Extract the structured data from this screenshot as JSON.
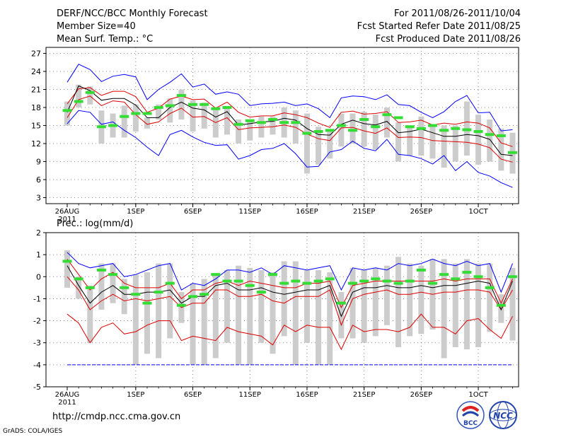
{
  "header": {
    "title": "DERF/NCC/BCC Monthly Forecast",
    "member_size": "Member Size=40",
    "variable": "Mean Surf. Temp.: °C",
    "forecast_period": "For 2011/08/26-2011/10/04",
    "started_refer": "Fcst Started Refer Date 2011/08/25",
    "produced": "Fcst Produced Date 2011/08/26"
  },
  "footer": {
    "url": "http://cmdp.ncc.cma.gov.cn",
    "grads": "GrADS: COLA/IGES"
  },
  "logos": {
    "bcc": "BCC",
    "ncc": "NCC"
  },
  "colors": {
    "max_min": "#0000ff",
    "spread": "#dd0000",
    "mean": "#000000",
    "box": "#cccccc",
    "obs": "#33dd33"
  },
  "chart_data": [
    {
      "type": "line",
      "title": "Mean Surf. Temp.: °C",
      "xlabel": "",
      "ylabel": "",
      "ylim": [
        2,
        28
      ],
      "yticks": [
        3,
        6,
        9,
        12,
        15,
        18,
        21,
        24,
        27
      ],
      "ytick_labels": [
        "3",
        "6",
        "9",
        "12",
        "15",
        "18",
        "21",
        "24",
        "27"
      ],
      "xtick_labels": [
        "26AUG",
        "1SEP",
        "6SEP",
        "11SEP",
        "16SEP",
        "21SEP",
        "26SEP",
        "1OCT"
      ],
      "xtick_days": [
        0,
        6,
        11,
        16,
        21,
        26,
        31,
        36
      ],
      "xtick_sub": "2011",
      "grid": true,
      "x": [
        0,
        1,
        2,
        3,
        4,
        5,
        6,
        7,
        8,
        9,
        10,
        11,
        12,
        13,
        14,
        15,
        16,
        17,
        18,
        19,
        20,
        21,
        22,
        23,
        24,
        25,
        26,
        27,
        28,
        29,
        30,
        31,
        32,
        33,
        34,
        35,
        36,
        37,
        38,
        39
      ],
      "series": [
        {
          "name": "max",
          "values": [
            22.2,
            25.2,
            24.3,
            22.3,
            23.2,
            23.5,
            23.1,
            19.3,
            21.0,
            22.2,
            23.6,
            21.4,
            21.9,
            20.2,
            20.6,
            20.2,
            18.3,
            18.6,
            18.7,
            18.9,
            18.3,
            18.6,
            17.8,
            16.3,
            19.6,
            19.9,
            19.8,
            19.3,
            20.1,
            18.5,
            18.3,
            17.2,
            16.3,
            17.3,
            19.0,
            20.0,
            17.1,
            17.2,
            14.1,
            14.3
          ]
        },
        {
          "name": "upper",
          "values": [
            18.6,
            21.1,
            21.3,
            20.0,
            20.7,
            20.7,
            19.8,
            17.2,
            17.9,
            19.4,
            19.9,
            19.3,
            19.4,
            17.9,
            18.9,
            17.2,
            16.4,
            16.6,
            16.6,
            17.1,
            16.8,
            16.3,
            15.4,
            14.7,
            17.2,
            17.4,
            16.9,
            17.0,
            17.3,
            15.5,
            15.6,
            15.9,
            15.1,
            15.4,
            15.2,
            15.6,
            15.4,
            14.6,
            12.1,
            11.5
          ]
        },
        {
          "name": "mean",
          "values": [
            17.2,
            21.6,
            20.8,
            19.2,
            19.5,
            19.5,
            18.4,
            16.3,
            16.3,
            18.0,
            18.9,
            17.9,
            17.6,
            16.4,
            17.3,
            15.1,
            15.3,
            15.6,
            15.7,
            16.2,
            15.9,
            14.5,
            13.5,
            13.4,
            15.2,
            15.9,
            15.3,
            15.1,
            15.7,
            13.8,
            14.0,
            14.4,
            13.8,
            13.2,
            13.2,
            13.5,
            13.3,
            12.7,
            10.2,
            10.0
          ]
        },
        {
          "name": "lower",
          "values": [
            16.3,
            19.3,
            19.9,
            18.3,
            19.1,
            18.9,
            16.8,
            15.2,
            15.6,
            17.0,
            17.9,
            16.4,
            16.5,
            15.5,
            16.3,
            14.3,
            14.6,
            14.7,
            14.8,
            15.1,
            14.7,
            13.6,
            12.8,
            12.5,
            14.6,
            14.7,
            14.1,
            13.7,
            14.6,
            13.0,
            13.1,
            13.0,
            12.5,
            12.4,
            12.3,
            12.2,
            11.9,
            11.3,
            9.4,
            8.9
          ]
        },
        {
          "name": "min",
          "values": [
            15.3,
            17.5,
            17.2,
            15.2,
            15.6,
            14.2,
            13.0,
            11.4,
            10.0,
            13.5,
            14.2,
            13.1,
            12.2,
            11.7,
            11.8,
            9.4,
            10.0,
            11.0,
            11.2,
            12.0,
            10.3,
            8.1,
            8.2,
            10.6,
            11.0,
            12.4,
            11.2,
            10.8,
            12.7,
            10.2,
            10.0,
            9.5,
            8.6,
            10.0,
            7.5,
            9.0,
            7.2,
            6.6,
            5.5,
            4.7
          ]
        },
        {
          "name": "box_top",
          "values": [
            19.0,
            21.8,
            21.5,
            17.5,
            17.0,
            18.3,
            18.5,
            16.3,
            18.5,
            19.5,
            21.0,
            19.2,
            18.8,
            18.0,
            17.8,
            16.0,
            15.6,
            16.5,
            16.5,
            18.0,
            17.5,
            17.0,
            14.8,
            14.0,
            17.0,
            17.0,
            17.3,
            16.8,
            18.0,
            15.5,
            15.0,
            16.5,
            14.8,
            15.0,
            15.0,
            19.0,
            16.8,
            16.0,
            14.5,
            13.8
          ]
        },
        {
          "name": "box_bottom",
          "values": [
            15.0,
            18.0,
            18.5,
            12.0,
            13.0,
            13.0,
            14.0,
            14.5,
            16.0,
            15.5,
            16.0,
            14.0,
            14.5,
            13.0,
            13.5,
            12.0,
            12.5,
            13.0,
            13.5,
            13.0,
            12.0,
            7.0,
            8.5,
            9.5,
            11.5,
            12.0,
            11.5,
            11.0,
            13.0,
            9.0,
            10.0,
            10.0,
            9.5,
            8.0,
            9.0,
            10.0,
            8.5,
            9.0,
            7.5,
            7.0
          ]
        },
        {
          "name": "obs",
          "values": [
            17.5,
            19.0,
            20.5,
            14.8,
            15.0,
            16.5,
            17.0,
            17.0,
            18.0,
            18.3,
            20.0,
            18.5,
            18.5,
            17.8,
            18.0,
            15.2,
            15.8,
            15.5,
            16.0,
            15.5,
            15.5,
            13.7,
            14.0,
            14.2,
            15.0,
            14.2,
            16.0,
            14.8,
            16.8,
            16.3,
            14.8,
            14.5,
            15.0,
            14.2,
            14.5,
            14.3,
            14.0,
            13.5,
            13.3,
            10.5
          ]
        }
      ]
    },
    {
      "type": "line",
      "title": "Prec.: log(mm/d)",
      "xlabel": "",
      "ylabel": "",
      "ylim": [
        -5,
        2
      ],
      "yticks": [
        -5,
        -4,
        -3,
        -2,
        -1,
        0,
        1,
        2
      ],
      "ytick_labels": [
        "-5",
        "-4",
        "-3",
        "-2",
        "-1",
        "0",
        "1",
        "2"
      ],
      "xtick_labels": [
        "26AUG",
        "1SEP",
        "6SEP",
        "11SEP",
        "16SEP",
        "21SEP",
        "26SEP",
        "1OCT"
      ],
      "xtick_days": [
        0,
        6,
        11,
        16,
        21,
        26,
        31,
        36
      ],
      "xtick_sub": "2011",
      "grid": true,
      "x": [
        0,
        1,
        2,
        3,
        4,
        5,
        6,
        7,
        8,
        9,
        10,
        11,
        12,
        13,
        14,
        15,
        16,
        17,
        18,
        19,
        20,
        21,
        22,
        23,
        24,
        25,
        26,
        27,
        28,
        29,
        30,
        31,
        32,
        33,
        34,
        35,
        36,
        37,
        38,
        39
      ],
      "series": [
        {
          "name": "max",
          "values": [
            1.1,
            0.6,
            0.4,
            0.5,
            0.6,
            0.0,
            0.1,
            0.3,
            0.5,
            0.6,
            -0.6,
            -0.3,
            -0.4,
            -0.1,
            0.3,
            0.3,
            0.2,
            0.4,
            0.1,
            0.5,
            0.4,
            0.3,
            0.4,
            0.5,
            -0.6,
            0.4,
            0.3,
            0.4,
            0.3,
            0.6,
            0.5,
            0.6,
            0.8,
            0.6,
            0.5,
            0.7,
            0.5,
            0.6,
            -0.7,
            0.6
          ]
        },
        {
          "name": "upper",
          "values": [
            0.8,
            0.1,
            -0.6,
            -0.1,
            0.2,
            -0.3,
            -0.5,
            -0.5,
            -0.5,
            -0.3,
            -1.0,
            -0.6,
            -0.6,
            -0.3,
            -0.2,
            -0.4,
            -0.2,
            -0.3,
            -0.4,
            -0.5,
            -0.5,
            -0.3,
            -0.3,
            -0.2,
            -1.4,
            -0.4,
            -0.3,
            -0.2,
            -0.2,
            -0.2,
            -0.2,
            -0.2,
            -0.2,
            -0.1,
            -0.2,
            -0.1,
            -0.1,
            -0.1,
            -1.2,
            -0.1
          ]
        },
        {
          "name": "mean",
          "values": [
            0.5,
            -0.4,
            -1.2,
            -0.7,
            -0.4,
            -0.8,
            -0.8,
            -0.7,
            -0.7,
            -0.6,
            -1.2,
            -0.9,
            -0.9,
            -0.4,
            -0.3,
            -0.6,
            -0.6,
            -0.5,
            -0.7,
            -0.8,
            -0.7,
            -0.6,
            -0.6,
            -0.4,
            -1.8,
            -0.7,
            -0.5,
            -0.5,
            -0.4,
            -0.5,
            -0.5,
            -0.4,
            -0.5,
            -0.4,
            -0.4,
            -0.3,
            -0.2,
            -0.3,
            -1.5,
            -0.2
          ]
        },
        {
          "name": "lower",
          "values": [
            0.0,
            -0.6,
            -1.5,
            -1.1,
            -0.8,
            -1.1,
            -1.0,
            -1.1,
            -1.0,
            -0.9,
            -1.4,
            -1.2,
            -1.2,
            -0.6,
            -0.6,
            -0.9,
            -0.9,
            -0.8,
            -1.1,
            -1.2,
            -0.9,
            -0.9,
            -0.9,
            -0.6,
            -2.2,
            -1.0,
            -0.8,
            -0.7,
            -0.6,
            -0.8,
            -0.8,
            -0.7,
            -0.8,
            -0.7,
            -0.7,
            -0.6,
            -0.6,
            -0.7,
            -1.5,
            -0.6
          ]
        },
        {
          "name": "spread_low",
          "values": [
            -1.7,
            -2.1,
            -3.0,
            -2.3,
            -2.1,
            -2.6,
            -2.5,
            -2.2,
            -2.0,
            -2.0,
            -2.9,
            -2.7,
            -2.8,
            -2.9,
            -2.3,
            -2.5,
            -2.6,
            -2.7,
            -3.1,
            -2.2,
            -2.5,
            -2.2,
            -2.3,
            -2.3,
            -3.3,
            -2.2,
            -2.5,
            -2.4,
            -2.4,
            -2.5,
            -2.3,
            -1.7,
            -2.3,
            -2.3,
            -2.6,
            -2.0,
            -1.9,
            -2.4,
            -2.8,
            -1.8
          ]
        },
        {
          "name": "min",
          "values": [
            -4.0,
            -4.0,
            -4.0,
            -4.0,
            -4.0,
            -4.0,
            -4.0,
            -4.0,
            -4.0,
            -4.0,
            -4.0,
            -4.0,
            -4.0,
            -4.0,
            -4.0,
            -4.0,
            -4.0,
            -4.0,
            -4.0,
            -4.0,
            -4.0,
            -4.0,
            -4.0,
            -4.0,
            -4.0,
            -4.0,
            -4.0,
            -4.0,
            -4.0,
            -4.0,
            -4.0,
            -4.0,
            -4.0,
            -4.0,
            -4.0,
            -4.0,
            -4.0,
            -4.0,
            -4.0,
            -4.0
          ]
        },
        {
          "name": "box_top",
          "values": [
            1.2,
            0.0,
            -0.4,
            0.6,
            0.6,
            -0.1,
            0.1,
            0.2,
            0.6,
            0.6,
            -0.7,
            -0.3,
            -0.1,
            0.1,
            0.3,
            0.5,
            0.4,
            0.3,
            0.2,
            0.7,
            0.7,
            0.3,
            0.3,
            0.2,
            -0.7,
            0.4,
            0.3,
            0.4,
            0.5,
            0.9,
            0.6,
            0.5,
            0.8,
            0.8,
            0.6,
            0.8,
            0.6,
            0.6,
            -0.8,
            0.4
          ]
        },
        {
          "name": "box_bottom",
          "values": [
            -0.5,
            -1.0,
            -3.0,
            -1.5,
            -1.2,
            -1.7,
            -4.0,
            -3.5,
            -3.7,
            -2.8,
            -2.1,
            -4.0,
            -4.0,
            -3.7,
            -3.0,
            -4.0,
            -4.0,
            -3.0,
            -3.5,
            -2.7,
            -4.0,
            -3.0,
            -4.0,
            -4.0,
            -2.8,
            -2.8,
            -3.0,
            -2.7,
            -2.2,
            -3.2,
            -2.7,
            -2.6,
            -2.4,
            -3.7,
            -3.2,
            -3.3,
            -3.2,
            -2.5,
            -2.1,
            -2.9
          ]
        },
        {
          "name": "obs",
          "values": [
            0.7,
            -0.1,
            -0.5,
            0.3,
            0.1,
            -0.5,
            -0.8,
            -1.2,
            -0.7,
            -0.3,
            -1.3,
            -0.9,
            -0.8,
            0.1,
            -0.2,
            -0.2,
            -0.4,
            -0.7,
            0.1,
            -0.3,
            -0.2,
            -0.3,
            -0.2,
            -0.1,
            -1.2,
            -0.3,
            -0.2,
            -0.1,
            -0.2,
            -0.3,
            -0.2,
            0.3,
            -0.3,
            0.1,
            -0.1,
            0.2,
            0.0,
            -0.5,
            -1.3,
            0.0
          ]
        }
      ]
    }
  ]
}
